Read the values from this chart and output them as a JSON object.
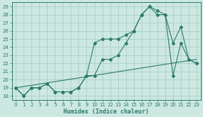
{
  "xlabel": "Humidex (Indice chaleur)",
  "background_color": "#cce8e0",
  "grid_color": "#aacfc8",
  "line_color": "#2d7a6e",
  "xlim": [
    -0.5,
    23.5
  ],
  "ylim": [
    17.5,
    29.5
  ],
  "xticks": [
    0,
    1,
    2,
    3,
    4,
    5,
    6,
    7,
    8,
    9,
    10,
    11,
    12,
    13,
    14,
    15,
    16,
    17,
    18,
    19,
    20,
    21,
    22,
    23
  ],
  "yticks": [
    18,
    19,
    20,
    21,
    22,
    23,
    24,
    25,
    26,
    27,
    28,
    29
  ],
  "curve_lower_x": [
    0,
    1,
    2,
    3,
    4,
    5,
    6,
    7,
    8,
    9,
    10,
    11,
    12,
    13,
    14,
    15,
    16,
    17,
    18,
    19,
    20,
    21,
    22,
    23
  ],
  "curve_lower_y": [
    19,
    18,
    19,
    19,
    19.5,
    18.5,
    18.5,
    18.5,
    19.0,
    20.5,
    20.5,
    22.5,
    22.5,
    23.0,
    24.5,
    26.0,
    28.0,
    29.0,
    28.0,
    28.0,
    20.5,
    24.5,
    22.5,
    22.0
  ],
  "curve_upper_x": [
    0,
    1,
    2,
    3,
    4,
    5,
    6,
    7,
    8,
    9,
    10,
    11,
    12,
    13,
    14,
    15,
    16,
    17,
    18,
    19,
    20,
    21,
    22,
    23
  ],
  "curve_upper_y": [
    19,
    18,
    19,
    19,
    19.5,
    18.5,
    18.5,
    18.5,
    19.0,
    20.5,
    24.5,
    25.0,
    25.0,
    25.0,
    25.5,
    26.0,
    28.0,
    29.0,
    28.5,
    28.0,
    24.5,
    26.5,
    22.5,
    22.0
  ],
  "line_x": [
    0,
    23
  ],
  "line_y": [
    19.0,
    22.5
  ]
}
